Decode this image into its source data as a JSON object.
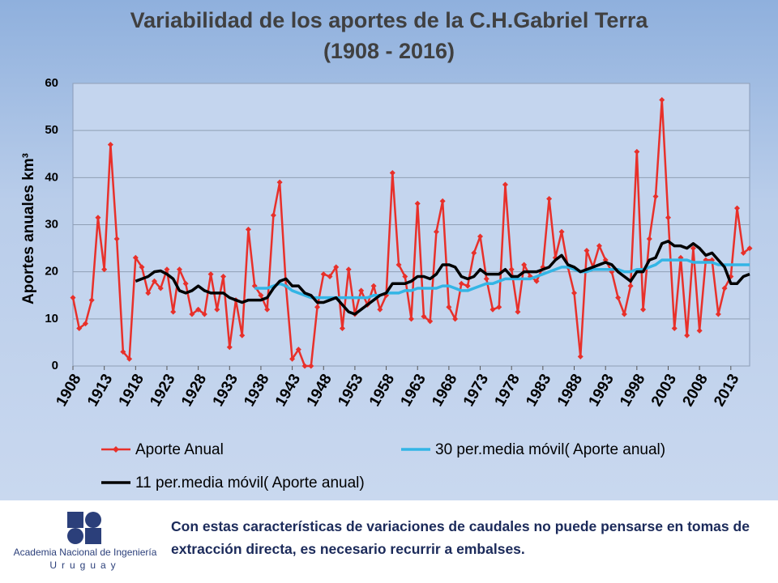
{
  "chart_data": {
    "type": "line",
    "title": "Variabilidad de los aportes de la C.H.Gabriel Terra (1908 - 2016)",
    "y_label": "Aportes anuales km³",
    "x": [
      1908,
      1909,
      1910,
      1911,
      1912,
      1913,
      1914,
      1915,
      1916,
      1917,
      1918,
      1919,
      1920,
      1921,
      1922,
      1923,
      1924,
      1925,
      1926,
      1927,
      1928,
      1929,
      1930,
      1931,
      1932,
      1933,
      1934,
      1935,
      1936,
      1937,
      1938,
      1939,
      1940,
      1941,
      1942,
      1943,
      1944,
      1945,
      1946,
      1947,
      1948,
      1949,
      1950,
      1951,
      1952,
      1953,
      1954,
      1955,
      1956,
      1957,
      1958,
      1959,
      1960,
      1961,
      1962,
      1963,
      1964,
      1965,
      1966,
      1967,
      1968,
      1969,
      1970,
      1971,
      1972,
      1973,
      1974,
      1975,
      1976,
      1977,
      1978,
      1979,
      1980,
      1981,
      1982,
      1983,
      1984,
      1985,
      1986,
      1987,
      1988,
      1989,
      1990,
      1991,
      1992,
      1993,
      1994,
      1995,
      1996,
      1997,
      1998,
      1999,
      2000,
      2001,
      2002,
      2003,
      2004,
      2005,
      2006,
      2007,
      2008,
      2009,
      2010,
      2011,
      2012,
      2013,
      2014,
      2015,
      2016
    ],
    "xlim": [
      1908,
      2016
    ],
    "xticks": [
      1908,
      1913,
      1918,
      1923,
      1928,
      1933,
      1938,
      1943,
      1948,
      1953,
      1958,
      1963,
      1968,
      1973,
      1978,
      1983,
      1988,
      1993,
      1998,
      2003,
      2008,
      2013
    ],
    "ylim": [
      0,
      60
    ],
    "yticks": [
      0,
      10,
      20,
      30,
      40,
      50,
      60
    ],
    "grid": true,
    "legend": "bottom",
    "series": [
      {
        "name": "Aporte Anual",
        "color": "#e8302a",
        "marker": "diamond",
        "values": [
          14.5,
          8,
          9,
          14,
          31.5,
          20.5,
          47,
          27,
          3,
          1.5,
          23,
          21,
          15.5,
          18,
          16.5,
          20.5,
          11.5,
          20.5,
          17.5,
          11,
          12,
          11,
          19.5,
          12,
          19,
          4,
          14,
          6.5,
          29,
          17,
          15,
          12,
          32,
          39,
          17,
          1.5,
          3.5,
          0,
          0,
          12.5,
          19.5,
          19,
          21,
          8,
          20.5,
          11,
          16,
          13,
          17,
          12,
          15,
          41,
          21.5,
          19,
          10,
          34.5,
          10.5,
          9.5,
          28.5,
          35,
          12.5,
          10,
          17.5,
          17,
          24,
          27.5,
          18.5,
          12,
          12.5,
          38.5,
          20.5,
          11.5,
          21.5,
          19,
          18,
          21,
          35.5,
          23,
          28.5,
          21,
          15.5,
          2,
          24.5,
          21,
          25.5,
          22.5,
          20,
          14.5,
          11,
          17,
          45.5,
          12,
          27,
          36,
          56.5,
          31.5,
          8,
          23,
          6.5,
          25,
          7.5,
          22.5,
          22.5,
          11,
          16.5,
          19,
          33.5,
          24,
          25
        ]
      },
      {
        "name": "30 per.media móvil( Aporte anual)",
        "color": "#33b5e5",
        "values": [
          null,
          null,
          null,
          null,
          null,
          null,
          null,
          null,
          null,
          null,
          null,
          null,
          null,
          null,
          null,
          null,
          null,
          null,
          null,
          null,
          null,
          null,
          null,
          null,
          null,
          null,
          null,
          null,
          null,
          16.5,
          16.5,
          16.5,
          17,
          17.5,
          17,
          16,
          15.5,
          15,
          14.5,
          14.5,
          14.5,
          14.5,
          14.5,
          14.5,
          14.5,
          14.5,
          14.5,
          14.5,
          15,
          15,
          15.5,
          15.5,
          15.5,
          16,
          16,
          16.5,
          16.5,
          16.5,
          16.5,
          17,
          17,
          16.5,
          16,
          16,
          16.5,
          17,
          17.5,
          17.5,
          18,
          18.5,
          18.5,
          18.5,
          18.5,
          18.5,
          19,
          19.5,
          20,
          20.5,
          21,
          21,
          20.5,
          20,
          20,
          20.5,
          20.5,
          20.5,
          20.5,
          20.5,
          20,
          20,
          20.5,
          20.5,
          21,
          21.5,
          22.5,
          22.5,
          22.5,
          22.5,
          22.5,
          22,
          22,
          22,
          22,
          21.5,
          21.5,
          21.5,
          21.5,
          21.5,
          21.5
        ]
      },
      {
        "name": "11 per.media móvil( Aporte anual)",
        "color": "#000000",
        "values": [
          null,
          null,
          null,
          null,
          null,
          null,
          null,
          null,
          null,
          null,
          18,
          18.5,
          19,
          20,
          20.2,
          19.5,
          18.5,
          16,
          15.5,
          16,
          17,
          16,
          15.5,
          15.5,
          15.5,
          14.5,
          14,
          13.5,
          14,
          14,
          14,
          14.5,
          16.5,
          18,
          18.5,
          17,
          17,
          15.5,
          15,
          13.5,
          13.5,
          14,
          14.5,
          13,
          11.5,
          11,
          12,
          13,
          14,
          15,
          15.5,
          17.5,
          17.5,
          17.5,
          18,
          19,
          19,
          18.5,
          19.5,
          21.5,
          21.5,
          21,
          19,
          18.5,
          19,
          20.5,
          19.5,
          19.5,
          19.5,
          20.5,
          19,
          19,
          20,
          20,
          20,
          20.5,
          21,
          22.5,
          23.5,
          21.5,
          21,
          20,
          20.5,
          21,
          21.5,
          22,
          21.5,
          20,
          19,
          18,
          20,
          20,
          22.5,
          23,
          26,
          26.5,
          25.5,
          25.5,
          25,
          26,
          25,
          23.5,
          24,
          22.5,
          21,
          17.5,
          17.5,
          19,
          19.5
        ]
      }
    ]
  },
  "footer": {
    "logo_name": "Academia Nacional de Ingeniería",
    "logo_country": "Uruguay",
    "text": "Con estas características de variaciones de caudales no puede pensarse en tomas de extracción directa, es necesario recurrir a embalses."
  }
}
